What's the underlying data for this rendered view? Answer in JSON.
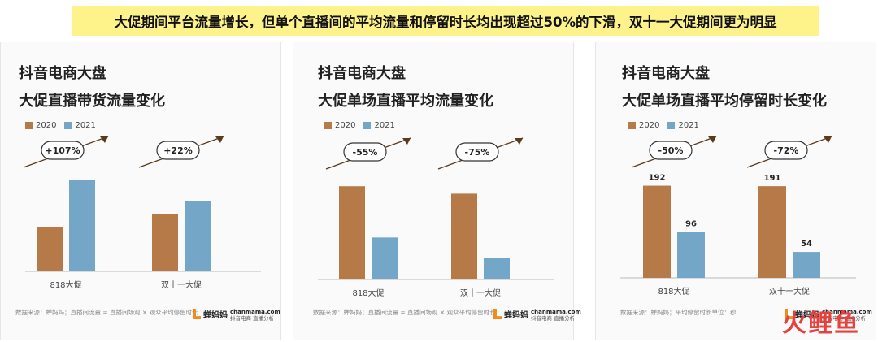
{
  "headline": "大促期间平台流量增长，但单个直播间的平均流量和停留时长均出现超过50%的下滑，双十一大促期间更为明显",
  "brand": "火鲤鱼",
  "colors": {
    "s2020": "#b57a48",
    "s2021": "#74a6c8"
  },
  "panels": [
    {
      "title1": "抖音电商大盘",
      "title2": "大促直播带货流量变化",
      "source": "数据来源：蝉妈妈；直播间流量 = 直播间场观 × 观众平均停留时长",
      "logo": "蝉妈妈",
      "site_name": "chanmama.com",
      "site_sub": "抖音电商  直播分析"
    },
    {
      "title1": "抖音电商大盘",
      "title2": "大促单场直播平均流量变化",
      "source": "数据来源：蝉妈妈；直播间流量 = 直播间场观 × 观众平均停留时长",
      "logo": "蝉妈妈",
      "site_name": "chanmama.com",
      "site_sub": "抖音电商  直播分析"
    },
    {
      "title1": "抖音电商大盘",
      "title2": "大促单场直播平均停留时长变化",
      "source": "数据来源：蝉妈妈；平均停留时长单位：秒",
      "logo": "蝉妈妈",
      "site_name": "chanmama.com",
      "site_sub": "抖音电商  直播分析"
    }
  ],
  "chart_data": [
    {
      "type": "bar",
      "categories": [
        "818大促",
        "双十一大促"
      ],
      "series": [
        {
          "name": "2020",
          "values": [
            1.0,
            1.3
          ]
        },
        {
          "name": "2021",
          "values": [
            2.07,
            1.59
          ]
        }
      ],
      "ylim": [
        0,
        2.4
      ],
      "data_labels": [
        "",
        "",
        "",
        ""
      ],
      "annotations": [
        "+107%",
        "+22%"
      ],
      "legend": "top-left"
    },
    {
      "type": "bar",
      "categories": [
        "818大促",
        "双十一大促"
      ],
      "series": [
        {
          "name": "2020",
          "values": [
            1.0,
            0.92
          ]
        },
        {
          "name": "2021",
          "values": [
            0.45,
            0.23
          ]
        }
      ],
      "ylim": [
        0,
        1.15
      ],
      "data_labels": [
        "",
        "",
        "",
        ""
      ],
      "annotations": [
        "-55%",
        "-75%"
      ],
      "legend": "top-left"
    },
    {
      "type": "bar",
      "categories": [
        "818大促",
        "双十一大促"
      ],
      "series": [
        {
          "name": "2020",
          "values": [
            192,
            191
          ]
        },
        {
          "name": "2021",
          "values": [
            96,
            54
          ]
        }
      ],
      "ylim": [
        0,
        220
      ],
      "data_labels": [
        "192",
        "96",
        "191",
        "54"
      ],
      "annotations": [
        "-50%",
        "-72%"
      ],
      "legend": "top-left"
    }
  ]
}
